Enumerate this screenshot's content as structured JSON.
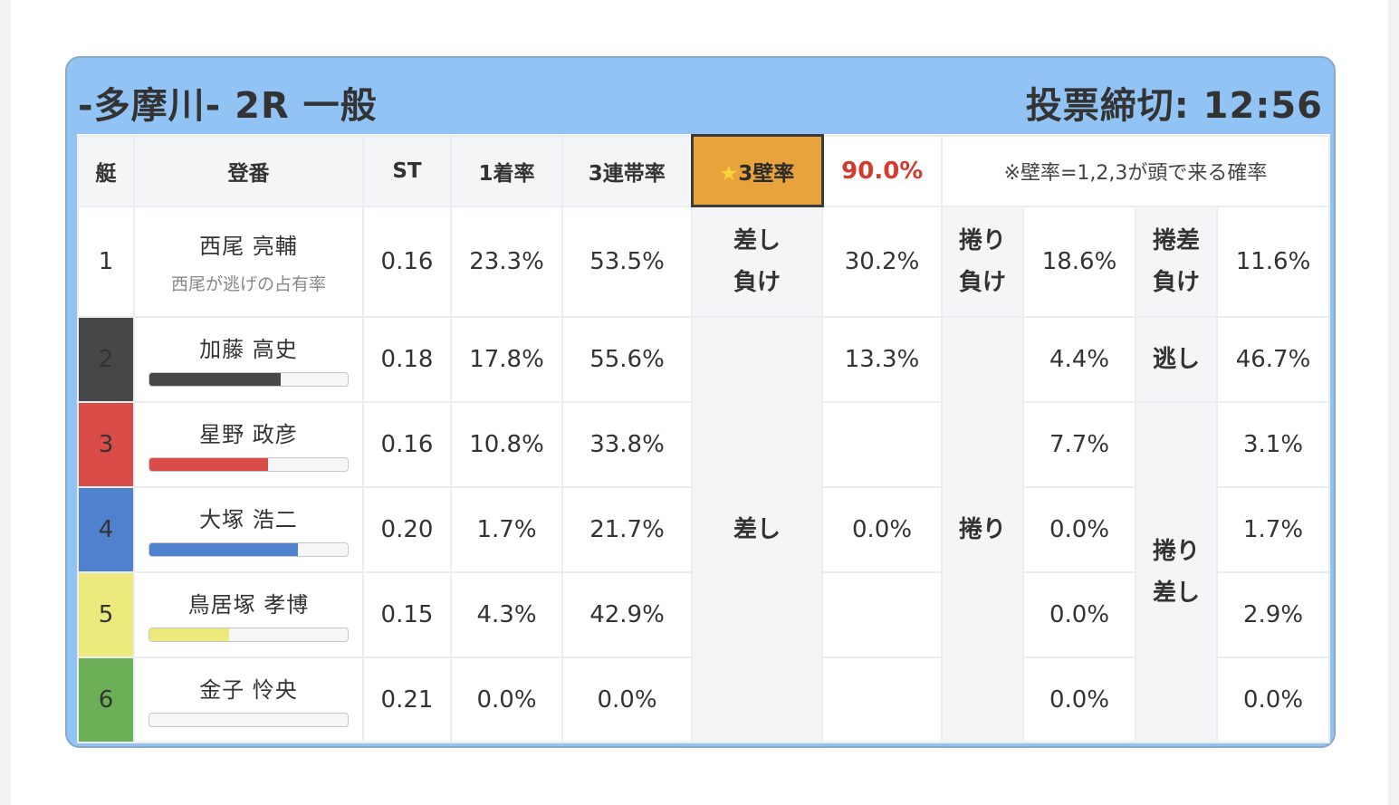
{
  "header": {
    "title": "-多摩川- 2R 一般",
    "deadline": "投票締切: 12:56"
  },
  "columns": {
    "boat": "艇",
    "racer": "登番",
    "st": "ST",
    "first_rate": "1着率",
    "trio_rate": "3連帯率",
    "wall_rate_label": "3壁率",
    "wall_rate_star": "★",
    "wall_rate_value": "90.0%",
    "note": "※壁率=1,2,3が頭で来る確率"
  },
  "racers": [
    {
      "boat": "1",
      "name": "西尾 亮輔",
      "sub": "西尾が逃げの占有率",
      "st": "0.16",
      "first": "23.3%",
      "trio": "53.5%"
    },
    {
      "boat": "2",
      "name": "加藤 高史",
      "st": "0.18",
      "first": "17.8%",
      "trio": "55.6%",
      "bar": 0.66,
      "bar_color": "#474747"
    },
    {
      "boat": "3",
      "name": "星野 政彦",
      "st": "0.16",
      "first": "10.8%",
      "trio": "33.8%",
      "bar": 0.6,
      "bar_color": "#d94c47"
    },
    {
      "boat": "4",
      "name": "大塚 浩二",
      "st": "0.20",
      "first": "1.7%",
      "trio": "21.7%",
      "bar": 0.75,
      "bar_color": "#5081cf"
    },
    {
      "boat": "5",
      "name": "鳥居塚 孝博",
      "st": "0.15",
      "first": "4.3%",
      "trio": "42.9%",
      "bar": 0.4,
      "bar_color": "#ecea7c"
    },
    {
      "boat": "6",
      "name": "金子 怜央",
      "st": "0.21",
      "first": "0.0%",
      "trio": "0.0%",
      "bar": 0.0,
      "bar_color": "#6caf56"
    }
  ],
  "labels": {
    "sashi_make_1": "差し",
    "sashi_make_2": "負け",
    "makuri_make_1": "捲り",
    "makuri_make_2": "負け",
    "makurizashi_make_1": "捲差",
    "makurizashi_make_2": "負け",
    "sashi": "差し",
    "makuri": "捲り",
    "nige": "逃し",
    "makurizashi_1": "捲り",
    "makurizashi_2": "差し"
  },
  "values": {
    "sashi_make": "30.2%",
    "makuri_make": "18.6%",
    "makurizashi_make": "11.6%",
    "sashi_2": "13.3%",
    "sashi_4": "0.0%",
    "makuri_2": "4.4%",
    "makuri_3": "7.7%",
    "makuri_4": "0.0%",
    "makuri_5": "0.0%",
    "makuri_6": "0.0%",
    "nige_2": "46.7%",
    "mz_3": "3.1%",
    "mz_4": "1.7%",
    "mz_5": "2.9%",
    "mz_6": "0.0%"
  }
}
